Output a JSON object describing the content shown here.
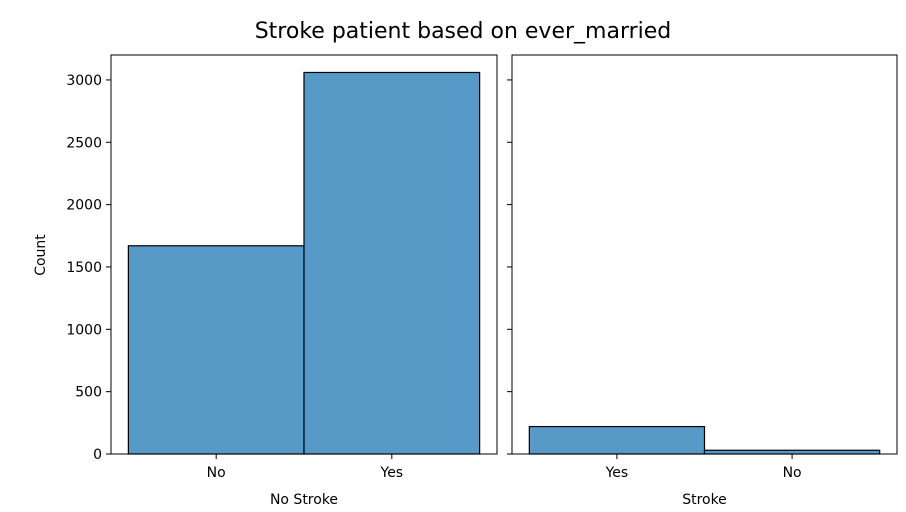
{
  "chart_data": {
    "title": "Stroke patient based on ever_married",
    "shared_y": {
      "label": "Count",
      "ylim": [
        0,
        3200
      ],
      "ticks": [
        0,
        500,
        1000,
        1500,
        2000,
        2500,
        3000
      ]
    },
    "bar_color": "#5799c7",
    "edge_color": "#000000",
    "panels": [
      {
        "type": "bar",
        "xlabel": "No Stroke",
        "categories": [
          "No",
          "Yes"
        ],
        "values": [
          1670,
          3060
        ]
      },
      {
        "type": "bar",
        "xlabel": "Stroke",
        "categories": [
          "Yes",
          "No"
        ],
        "values": [
          220,
          30
        ]
      }
    ]
  }
}
